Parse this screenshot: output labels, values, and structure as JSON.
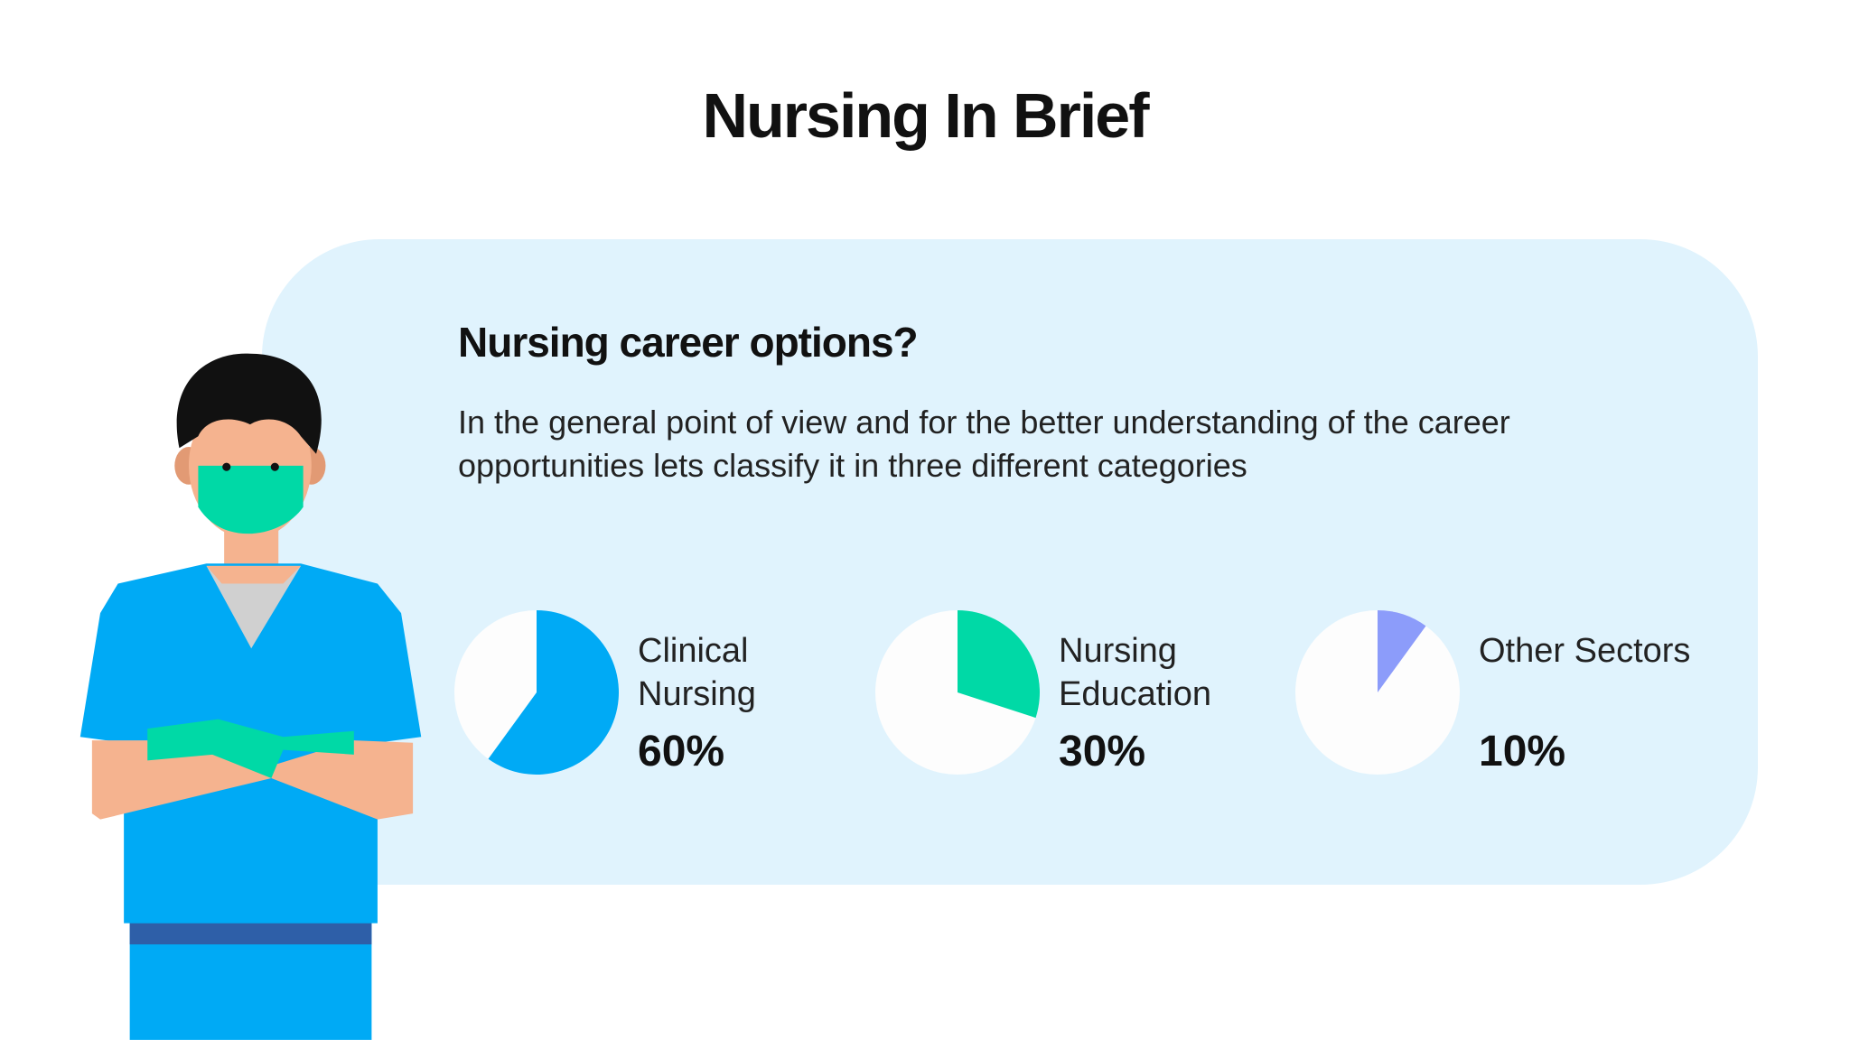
{
  "header": {
    "title": "Nursing In Brief"
  },
  "card": {
    "heading": "Nursing career options?",
    "description": "In the general point of view and for the better understanding of the career opportunities lets classify it in three different categories"
  },
  "chart_data": [
    {
      "type": "pie",
      "title": "Clinical Nursing",
      "values": [
        60
      ],
      "value_labels": [
        "60%"
      ],
      "color": "#00aaf5"
    },
    {
      "type": "pie",
      "title": "Nursing Education",
      "values": [
        30
      ],
      "value_labels": [
        "30%"
      ],
      "color": "#00d9a6"
    },
    {
      "type": "pie",
      "title": "Other Sectors",
      "values": [
        10
      ],
      "value_labels": [
        "10%"
      ],
      "color": "#8c9cfa"
    }
  ]
}
